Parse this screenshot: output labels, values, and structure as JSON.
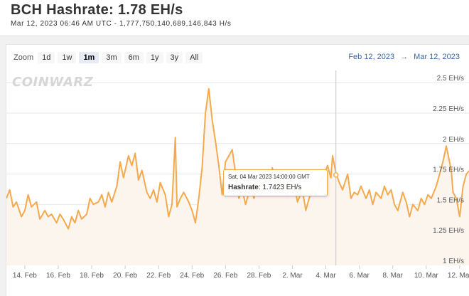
{
  "header": {
    "title": "BCH Hashrate: 1.78 EH/s",
    "subtitle": "Mar 12, 2023 06:46 AM UTC  -  1,777,750,140,689,146,843 H/s"
  },
  "zoom": {
    "label": "Zoom",
    "buttons": [
      "1d",
      "1w",
      "1m",
      "3m",
      "6m",
      "1y",
      "3y",
      "All"
    ],
    "active": "1m"
  },
  "range": {
    "from": "Feb 12, 2023",
    "separator": "→",
    "to": "Mar 12, 2023"
  },
  "watermark": "COINWARZ",
  "tooltip": {
    "date": "Sat, 04 Mar 2023 14:00:00 GMT",
    "series_name": "Hashrate",
    "value_text": ": 1.7423 EH/s"
  },
  "colors": {
    "line": "#f5a94d",
    "area": "#fbf5ee",
    "crosshair": "#c8c8c8",
    "grid": "#e8e8e8"
  },
  "chart_data": {
    "type": "line",
    "title": "BCH Hashrate: 1.78 EH/s",
    "ylabel": "",
    "xlabel": "",
    "ylim": [
      1.0,
      2.6
    ],
    "y_ticks": [
      {
        "value": 1.0,
        "label": "1 EH/s"
      },
      {
        "value": 1.25,
        "label": "1.25 EH/s"
      },
      {
        "value": 1.5,
        "label": "1.5 EH/s"
      },
      {
        "value": 1.75,
        "label": "1.75 EH/s"
      },
      {
        "value": 2.0,
        "label": "2 EH/s"
      },
      {
        "value": 2.25,
        "label": "2.25 EH/s"
      },
      {
        "value": 2.5,
        "label": "2.5 EH/s"
      }
    ],
    "x_ticks": [
      {
        "day": 14,
        "label": "14. Feb"
      },
      {
        "day": 16,
        "label": "16. Feb"
      },
      {
        "day": 18,
        "label": "18. Feb"
      },
      {
        "day": 20,
        "label": "20. Feb"
      },
      {
        "day": 22,
        "label": "22. Feb"
      },
      {
        "day": 24,
        "label": "24. Feb"
      },
      {
        "day": 26,
        "label": "26. Feb"
      },
      {
        "day": 28,
        "label": "28. Feb"
      },
      {
        "day": 30,
        "label": "2. Mar"
      },
      {
        "day": 32,
        "label": "4. Mar"
      },
      {
        "day": 34,
        "label": "6. Mar"
      },
      {
        "day": 36,
        "label": "8. Mar"
      },
      {
        "day": 38,
        "label": "10. Mar"
      },
      {
        "day": 40,
        "label": "12. Mar"
      }
    ],
    "xlim": [
      12.9,
      40.6
    ],
    "crosshair_day": 32.6,
    "grid": true,
    "series": [
      {
        "name": "Hashrate",
        "x_day": [
          12.9,
          13.1,
          13.3,
          13.5,
          13.8,
          14.0,
          14.2,
          14.4,
          14.7,
          14.9,
          15.2,
          15.4,
          15.6,
          15.9,
          16.1,
          16.3,
          16.6,
          16.8,
          17.0,
          17.2,
          17.4,
          17.7,
          17.9,
          18.1,
          18.4,
          18.6,
          18.8,
          19.0,
          19.2,
          19.5,
          19.7,
          19.9,
          20.2,
          20.4,
          20.6,
          20.8,
          21.0,
          21.3,
          21.5,
          21.7,
          21.9,
          22.1,
          22.4,
          22.6,
          22.8,
          23.0,
          23.1,
          23.3,
          23.5,
          23.8,
          24.0,
          24.2,
          24.4,
          24.6,
          24.8,
          25.0,
          25.2,
          25.4,
          25.6,
          25.8,
          26.0,
          26.2,
          26.4,
          26.6,
          26.8,
          27.0,
          27.2,
          27.5,
          27.7,
          27.9,
          28.1,
          28.3,
          28.6,
          28.8,
          29.0,
          29.2,
          29.4,
          29.7,
          29.9,
          30.1,
          30.3,
          30.6,
          30.8,
          31.0,
          31.2,
          31.4,
          31.7,
          31.9,
          32.1,
          32.3,
          32.4,
          32.6,
          32.8,
          33.0,
          33.3,
          33.5,
          33.7,
          33.9,
          34.1,
          34.4,
          34.6,
          34.8,
          35.0,
          35.3,
          35.5,
          35.7,
          35.9,
          36.1,
          36.3,
          36.6,
          36.8,
          37.0,
          37.2,
          37.5,
          37.7,
          37.9,
          38.1,
          38.3,
          38.6,
          38.8,
          39.0,
          39.2,
          39.5,
          39.6,
          39.8,
          40.0,
          40.2,
          40.4,
          40.6
        ],
        "values": [
          1.55,
          1.62,
          1.48,
          1.52,
          1.4,
          1.45,
          1.58,
          1.48,
          1.52,
          1.38,
          1.45,
          1.4,
          1.42,
          1.35,
          1.42,
          1.38,
          1.3,
          1.4,
          1.35,
          1.45,
          1.38,
          1.42,
          1.55,
          1.5,
          1.52,
          1.58,
          1.48,
          1.6,
          1.52,
          1.65,
          1.85,
          1.72,
          1.9,
          1.82,
          1.92,
          1.7,
          1.78,
          1.6,
          1.55,
          1.62,
          1.52,
          1.68,
          1.58,
          1.4,
          1.5,
          2.05,
          1.48,
          1.55,
          1.6,
          1.52,
          1.45,
          1.35,
          1.55,
          1.8,
          2.25,
          2.45,
          2.2,
          2.02,
          1.82,
          1.58,
          1.85,
          1.9,
          1.95,
          1.75,
          1.55,
          1.62,
          1.5,
          1.65,
          1.55,
          1.68,
          1.58,
          1.72,
          1.68,
          1.8,
          1.62,
          1.72,
          1.6,
          1.58,
          1.72,
          1.68,
          1.52,
          1.62,
          1.45,
          1.55,
          1.62,
          1.58,
          1.7,
          1.74,
          1.82,
          1.72,
          1.9,
          1.76,
          1.68,
          1.62,
          1.75,
          1.55,
          1.6,
          1.58,
          1.65,
          1.55,
          1.62,
          1.5,
          1.6,
          1.55,
          1.65,
          1.58,
          1.62,
          1.5,
          1.45,
          1.6,
          1.52,
          1.4,
          1.5,
          1.45,
          1.55,
          1.5,
          1.58,
          1.55,
          1.65,
          1.75,
          1.85,
          1.98,
          1.78,
          1.6,
          1.55,
          1.4,
          1.65,
          1.75,
          1.78
        ]
      }
    ]
  }
}
